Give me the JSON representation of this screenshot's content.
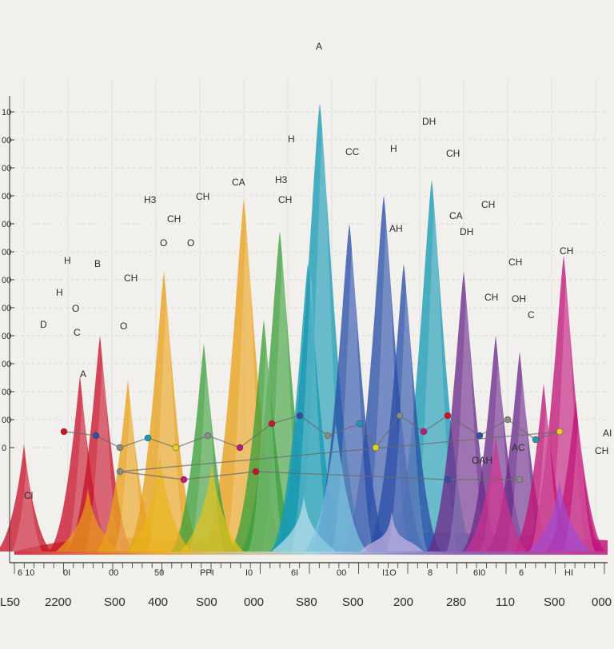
{
  "chart_data": {
    "type": "area",
    "title": "",
    "xlabel": "",
    "ylabel": "",
    "y_tick_labels": [
      "10",
      "00",
      "00",
      "00",
      "00",
      "00",
      "00",
      "00",
      "00",
      "00",
      "00",
      "00",
      "0"
    ],
    "x_tick_labels": [
      "L50",
      "2200",
      "S00",
      "400",
      "S00",
      "000",
      "S80",
      "S00",
      "200",
      "280",
      "110",
      "S00",
      "000"
    ],
    "x_minor_tick_labels": [
      "6 10",
      "0I",
      "00",
      "50",
      "PPI",
      "I0",
      "6I",
      "00",
      "I1O",
      "8",
      "6I0",
      "6",
      "HI"
    ],
    "grid": true,
    "series": [
      {
        "color": "#c8152c",
        "peaks": [
          [
            30,
            555
          ],
          [
            100,
            470
          ],
          [
            125,
            420
          ]
        ]
      },
      {
        "color": "#e8a01b",
        "peaks": [
          [
            160,
            475
          ],
          [
            205,
            340
          ],
          [
            305,
            250
          ]
        ]
      },
      {
        "color": "#3f9f3c",
        "peaks": [
          [
            255,
            430
          ],
          [
            350,
            290
          ],
          [
            330,
            400
          ]
        ]
      },
      {
        "color": "#1a9ab4",
        "peaks": [
          [
            400,
            130
          ],
          [
            385,
            330
          ],
          [
            540,
            225
          ]
        ]
      },
      {
        "color": "#2c4fa8",
        "peaks": [
          [
            480,
            245
          ],
          [
            437,
            280
          ],
          [
            505,
            330
          ]
        ]
      },
      {
        "color": "#6c2b8c",
        "peaks": [
          [
            580,
            340
          ],
          [
            620,
            420
          ],
          [
            650,
            440
          ]
        ]
      },
      {
        "color": "#c0177a",
        "peaks": [
          [
            705,
            320
          ],
          [
            680,
            480
          ],
          [
            720,
            500
          ]
        ]
      }
    ],
    "annotations": [
      "A",
      "H",
      "DH",
      "CH",
      "CC",
      "H",
      "H3",
      "CH",
      "CA",
      "CH",
      "CA",
      "CH",
      "H3",
      "CH",
      "AH",
      "CH",
      "CH",
      "B",
      "H",
      "H",
      "O",
      "D",
      "A",
      "C",
      "O",
      "CH",
      "Cl",
      "AC",
      "OAH",
      "OH",
      "AI",
      "CH",
      "O",
      "O",
      "C",
      "CH",
      "DH"
    ]
  }
}
